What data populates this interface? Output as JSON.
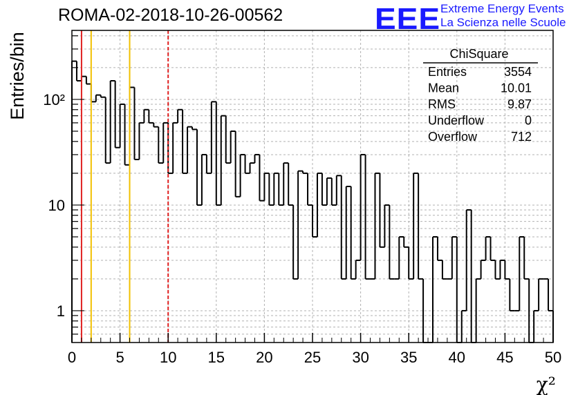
{
  "header": {
    "run_title": "ROMA-02-2018-10-26-00562",
    "logo_text": "EEE",
    "logo_line1": "Extreme Energy Events",
    "logo_line2": "La Scienza nelle Scuole"
  },
  "stats_box": {
    "title": "ChiSquare",
    "rows": [
      {
        "label": "Entries",
        "value": "3554"
      },
      {
        "label": "Mean",
        "value": "10.01"
      },
      {
        "label": "RMS",
        "value": "9.87"
      },
      {
        "label": "Underflow",
        "value": "0"
      },
      {
        "label": "Overflow",
        "value": "712"
      }
    ]
  },
  "colors": {
    "histogram": "#000000",
    "grid": "#b0b0b0",
    "line_red": "#e02020",
    "line_yellow": "#f2c000",
    "logo": "#1a1aff"
  },
  "chart_data": {
    "type": "bar",
    "histogram": true,
    "ylabel": "Entries/bin",
    "xlabel": "χ²",
    "xlim": [
      0,
      50
    ],
    "ylim": [
      0.5,
      450
    ],
    "yscale": "log",
    "grid": true,
    "bin_width": 0.5,
    "x_ticks": [
      "0",
      "5",
      "10",
      "15",
      "20",
      "25",
      "30",
      "35",
      "40",
      "45",
      "50"
    ],
    "y_ticks": [
      {
        "value": 1,
        "label": "1"
      },
      {
        "value": 10,
        "label": "10"
      },
      {
        "value": 100,
        "label": "10²"
      }
    ],
    "values": [
      230,
      150,
      165,
      140,
      95,
      110,
      105,
      25,
      150,
      35,
      90,
      24,
      130,
      27,
      60,
      80,
      60,
      55,
      25,
      60,
      20,
      60,
      80,
      20,
      55,
      52,
      10,
      30,
      20,
      95,
      10,
      70,
      25,
      50,
      12,
      30,
      20,
      25,
      30,
      11,
      20,
      10,
      20,
      10,
      25,
      10,
      2,
      21,
      20,
      10,
      5,
      20,
      10,
      18,
      10,
      19,
      2,
      15,
      2,
      3,
      30,
      2,
      2,
      20,
      4,
      10,
      2,
      2,
      5,
      4,
      2,
      20,
      2,
      0.5,
      0.5,
      5,
      3,
      2,
      2,
      5,
      0.5,
      1,
      9,
      0.5,
      2,
      3,
      5,
      3,
      2,
      3,
      2,
      1,
      1,
      5,
      2,
      0.5,
      1,
      2,
      2,
      1
    ],
    "vertical_lines": [
      {
        "x": 1,
        "color": "red",
        "style": "solid"
      },
      {
        "x": 2,
        "color": "yellow",
        "style": "solid"
      },
      {
        "x": 6,
        "color": "yellow",
        "style": "solid"
      },
      {
        "x": 10,
        "color": "red",
        "style": "dashed"
      }
    ]
  }
}
